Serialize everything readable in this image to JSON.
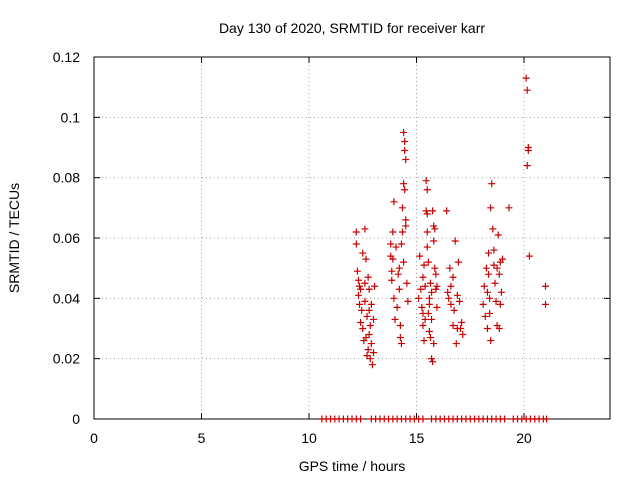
{
  "chart_data": {
    "type": "scatter",
    "title": "Day 130 of 2020, SRMTID for receiver karr",
    "xlabel": "GPS time / hours",
    "ylabel": "SRMTID / TECUs",
    "xlim": [
      0,
      24
    ],
    "ylim": [
      0,
      0.12
    ],
    "x_ticks": [
      0,
      5,
      10,
      15,
      20
    ],
    "y_ticks": [
      0,
      0.02,
      0.04,
      0.06,
      0.08,
      0.1,
      0.12
    ],
    "x_tick_labels": [
      "0",
      "5",
      "10",
      "15",
      "20"
    ],
    "y_tick_labels": [
      "0",
      "0.02",
      "0.04",
      "0.06",
      "0.08",
      "0.1",
      "0.12"
    ],
    "grid": true,
    "marker": "+",
    "color": "#cc0000",
    "series": [
      {
        "name": "SRMTID",
        "points": [
          [
            12.2,
            0.058
          ],
          [
            12.2,
            0.062
          ],
          [
            12.25,
            0.049
          ],
          [
            12.3,
            0.046
          ],
          [
            12.3,
            0.041
          ],
          [
            12.35,
            0.044
          ],
          [
            12.35,
            0.038
          ],
          [
            12.4,
            0.043
          ],
          [
            12.4,
            0.032
          ],
          [
            12.45,
            0.036
          ],
          [
            12.5,
            0.055
          ],
          [
            12.5,
            0.03
          ],
          [
            12.55,
            0.026
          ],
          [
            12.6,
            0.063
          ],
          [
            12.6,
            0.039
          ],
          [
            12.65,
            0.053
          ],
          [
            12.65,
            0.027
          ],
          [
            12.7,
            0.034
          ],
          [
            12.7,
            0.021
          ],
          [
            12.75,
            0.047
          ],
          [
            12.75,
            0.023
          ],
          [
            12.8,
            0.043
          ],
          [
            12.8,
            0.028
          ],
          [
            12.85,
            0.031
          ],
          [
            12.85,
            0.02
          ],
          [
            12.9,
            0.038
          ],
          [
            12.9,
            0.025
          ],
          [
            12.95,
            0.018
          ],
          [
            13.0,
            0.033
          ],
          [
            13.05,
            0.044
          ],
          [
            13.0,
            0.022
          ],
          [
            12.8,
            0.036
          ],
          [
            12.6,
            0.045
          ],
          [
            13.8,
            0.058
          ],
          [
            13.8,
            0.054
          ],
          [
            13.85,
            0.049
          ],
          [
            13.85,
            0.046
          ],
          [
            13.9,
            0.062
          ],
          [
            13.9,
            0.053
          ],
          [
            13.95,
            0.072
          ],
          [
            13.95,
            0.04
          ],
          [
            14.0,
            0.033
          ],
          [
            14.05,
            0.057
          ],
          [
            14.1,
            0.037
          ],
          [
            14.15,
            0.048
          ],
          [
            14.2,
            0.043
          ],
          [
            14.25,
            0.031
          ],
          [
            14.25,
            0.027
          ],
          [
            14.3,
            0.025
          ],
          [
            14.3,
            0.058
          ],
          [
            14.35,
            0.062
          ],
          [
            14.35,
            0.07
          ],
          [
            14.4,
            0.095
          ],
          [
            14.4,
            0.078
          ],
          [
            14.45,
            0.092
          ],
          [
            14.45,
            0.089
          ],
          [
            14.5,
            0.086
          ],
          [
            14.45,
            0.076
          ],
          [
            14.5,
            0.066
          ],
          [
            14.5,
            0.064
          ],
          [
            14.4,
            0.052
          ],
          [
            14.55,
            0.045
          ],
          [
            14.6,
            0.039
          ],
          [
            14.2,
            0.05
          ],
          [
            15.1,
            0.04
          ],
          [
            15.15,
            0.054
          ],
          [
            15.2,
            0.043
          ],
          [
            15.25,
            0.037
          ],
          [
            15.3,
            0.047
          ],
          [
            15.3,
            0.031
          ],
          [
            15.35,
            0.051
          ],
          [
            15.35,
            0.026
          ],
          [
            15.4,
            0.044
          ],
          [
            15.45,
            0.079
          ],
          [
            15.45,
            0.069
          ],
          [
            15.5,
            0.076
          ],
          [
            15.5,
            0.068
          ],
          [
            15.5,
            0.062
          ],
          [
            15.55,
            0.052
          ],
          [
            15.55,
            0.035
          ],
          [
            15.6,
            0.029
          ],
          [
            15.6,
            0.04
          ],
          [
            15.65,
            0.045
          ],
          [
            15.65,
            0.027
          ],
          [
            15.7,
            0.033
          ],
          [
            15.7,
            0.02
          ],
          [
            15.75,
            0.019
          ],
          [
            15.75,
            0.069
          ],
          [
            15.8,
            0.064
          ],
          [
            15.8,
            0.059
          ],
          [
            15.85,
            0.063
          ],
          [
            15.85,
            0.05
          ],
          [
            15.9,
            0.048
          ],
          [
            15.9,
            0.043
          ],
          [
            15.95,
            0.037
          ],
          [
            15.95,
            0.044
          ],
          [
            15.3,
            0.035
          ],
          [
            15.4,
            0.033
          ],
          [
            15.6,
            0.038
          ],
          [
            15.7,
            0.042
          ],
          [
            15.5,
            0.057
          ],
          [
            15.8,
            0.025
          ],
          [
            16.4,
            0.069
          ],
          [
            16.45,
            0.042
          ],
          [
            16.5,
            0.04
          ],
          [
            16.55,
            0.05
          ],
          [
            16.6,
            0.044
          ],
          [
            16.7,
            0.047
          ],
          [
            16.7,
            0.031
          ],
          [
            16.75,
            0.036
          ],
          [
            16.8,
            0.059
          ],
          [
            16.85,
            0.025
          ],
          [
            16.9,
            0.03
          ],
          [
            16.95,
            0.052
          ],
          [
            17.0,
            0.039
          ],
          [
            17.05,
            0.03
          ],
          [
            17.1,
            0.032
          ],
          [
            17.15,
            0.028
          ],
          [
            16.6,
            0.038
          ],
          [
            16.9,
            0.041
          ],
          [
            18.1,
            0.038
          ],
          [
            18.15,
            0.044
          ],
          [
            18.2,
            0.034
          ],
          [
            18.25,
            0.05
          ],
          [
            18.3,
            0.042
          ],
          [
            18.3,
            0.03
          ],
          [
            18.35,
            0.055
          ],
          [
            18.35,
            0.048
          ],
          [
            18.4,
            0.035
          ],
          [
            18.45,
            0.026
          ],
          [
            18.45,
            0.07
          ],
          [
            18.5,
            0.078
          ],
          [
            18.55,
            0.063
          ],
          [
            18.6,
            0.056
          ],
          [
            18.65,
            0.045
          ],
          [
            18.7,
            0.039
          ],
          [
            18.75,
            0.05
          ],
          [
            18.8,
            0.061
          ],
          [
            18.85,
            0.048
          ],
          [
            18.9,
            0.052
          ],
          [
            18.9,
            0.038
          ],
          [
            18.95,
            0.042
          ],
          [
            18.75,
            0.031
          ],
          [
            18.85,
            0.03
          ],
          [
            19.3,
            0.07
          ],
          [
            19.0,
            0.053
          ],
          [
            18.4,
            0.04
          ],
          [
            18.6,
            0.051
          ],
          [
            20.1,
            0.113
          ],
          [
            20.15,
            0.109
          ],
          [
            20.2,
            0.09
          ],
          [
            20.2,
            0.089
          ],
          [
            20.15,
            0.084
          ],
          [
            20.25,
            0.054
          ],
          [
            21.0,
            0.044
          ],
          [
            21.0,
            0.038
          ]
        ]
      },
      {
        "name": "baseline",
        "points": [
          [
            10.6,
            0
          ],
          [
            10.8,
            0
          ],
          [
            11.0,
            0
          ],
          [
            11.2,
            0
          ],
          [
            11.4,
            0
          ],
          [
            11.6,
            0
          ],
          [
            11.8,
            0
          ],
          [
            12.0,
            0
          ],
          [
            12.2,
            0
          ],
          [
            12.4,
            0
          ],
          [
            12.9,
            0
          ],
          [
            13.1,
            0
          ],
          [
            13.3,
            0
          ],
          [
            13.5,
            0
          ],
          [
            13.7,
            0
          ],
          [
            13.9,
            0
          ],
          [
            14.1,
            0
          ],
          [
            14.3,
            0
          ],
          [
            14.5,
            0
          ],
          [
            14.7,
            0
          ],
          [
            14.9,
            0
          ],
          [
            15.1,
            0
          ],
          [
            15.3,
            0
          ],
          [
            15.7,
            0
          ],
          [
            15.9,
            0
          ],
          [
            16.1,
            0
          ],
          [
            16.3,
            0
          ],
          [
            16.5,
            0
          ],
          [
            16.7,
            0
          ],
          [
            16.9,
            0
          ],
          [
            17.1,
            0
          ],
          [
            17.3,
            0
          ],
          [
            17.5,
            0
          ],
          [
            17.7,
            0
          ],
          [
            17.9,
            0
          ],
          [
            18.1,
            0
          ],
          [
            18.3,
            0
          ],
          [
            18.5,
            0
          ],
          [
            18.7,
            0
          ],
          [
            18.9,
            0
          ],
          [
            19.1,
            0
          ],
          [
            19.5,
            0
          ],
          [
            19.7,
            0
          ],
          [
            19.9,
            0
          ],
          [
            20.1,
            0
          ],
          [
            20.3,
            0
          ],
          [
            20.5,
            0
          ],
          [
            20.7,
            0
          ],
          [
            20.9,
            0
          ],
          [
            21.05,
            0
          ]
        ]
      }
    ]
  }
}
